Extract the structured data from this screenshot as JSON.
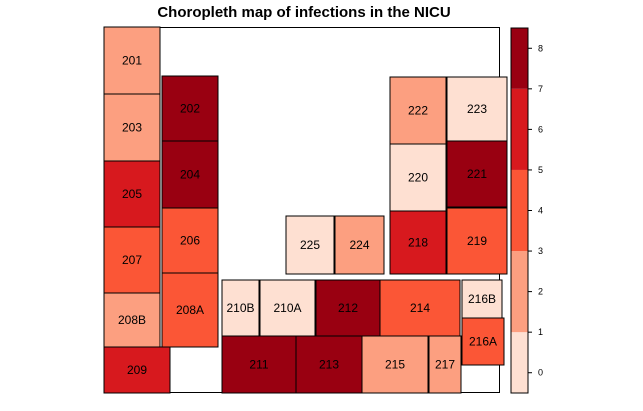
{
  "title": "Choropleth map of infections in the NICU",
  "palette": {
    "bin_0_1": "#fee0d2",
    "bin_2_3": "#fc9f80",
    "bin_4_5": "#fb5636",
    "bin_6_7": "#d7191e",
    "bin_8": "#990011",
    "outline": "#000000"
  },
  "chart_data": {
    "type": "heatmap",
    "title": "Choropleth map of infections in the NICU",
    "legend": {
      "position": "right",
      "ticks": [
        0,
        1,
        2,
        3,
        4,
        5,
        6,
        7,
        8
      ],
      "range": [
        -0.5,
        8.5
      ]
    },
    "rooms": [
      {
        "label": "201",
        "value": 2
      },
      {
        "label": "202",
        "value": 8
      },
      {
        "label": "203",
        "value": 2
      },
      {
        "label": "204",
        "value": 8
      },
      {
        "label": "205",
        "value": 6
      },
      {
        "label": "206",
        "value": 4
      },
      {
        "label": "207",
        "value": 4
      },
      {
        "label": "208B",
        "value": 2
      },
      {
        "label": "208A",
        "value": 4
      },
      {
        "label": "209",
        "value": 6
      },
      {
        "label": "210B",
        "value": 0
      },
      {
        "label": "210A",
        "value": 0
      },
      {
        "label": "212",
        "value": 8
      },
      {
        "label": "214",
        "value": 4
      },
      {
        "label": "216B",
        "value": 0
      },
      {
        "label": "216A",
        "value": 4
      },
      {
        "label": "211",
        "value": 8
      },
      {
        "label": "213",
        "value": 8
      },
      {
        "label": "215",
        "value": 2
      },
      {
        "label": "217",
        "value": 2
      },
      {
        "label": "225",
        "value": 0
      },
      {
        "label": "224",
        "value": 2
      },
      {
        "label": "222",
        "value": 2
      },
      {
        "label": "223",
        "value": 0
      },
      {
        "label": "220",
        "value": 0
      },
      {
        "label": "221",
        "value": 8
      },
      {
        "label": "218",
        "value": 6
      },
      {
        "label": "219",
        "value": 4
      }
    ]
  }
}
